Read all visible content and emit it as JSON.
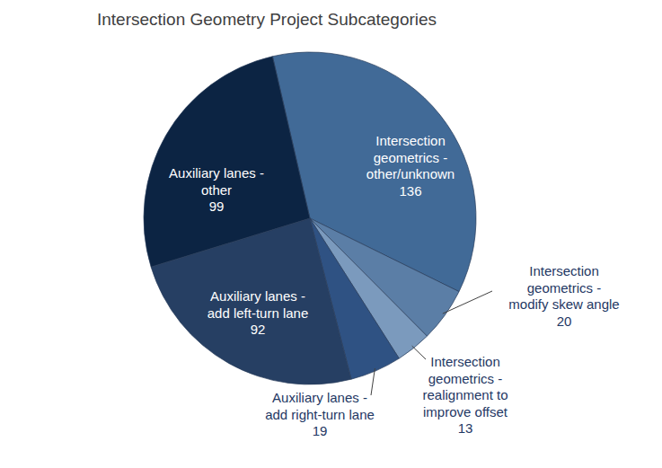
{
  "chart_data": {
    "type": "pie",
    "title": "Intersection Geometry Project Subcategories",
    "categories": [
      "Intersection geometrics - other/unknown",
      "Intersection geometrics - modify skew angle",
      "Intersection geometrics - realignment to improve offset",
      "Auxiliary lanes - add right-turn lane",
      "Auxiliary lanes - add left-turn lane",
      "Auxiliary lanes - other"
    ],
    "values": [
      136,
      20,
      13,
      19,
      92,
      99
    ],
    "colors": [
      "#416a97",
      "#5b7ea6",
      "#7b9abd",
      "#2f5283",
      "#263f63",
      "#0c2443"
    ],
    "data_labels": true
  }
}
